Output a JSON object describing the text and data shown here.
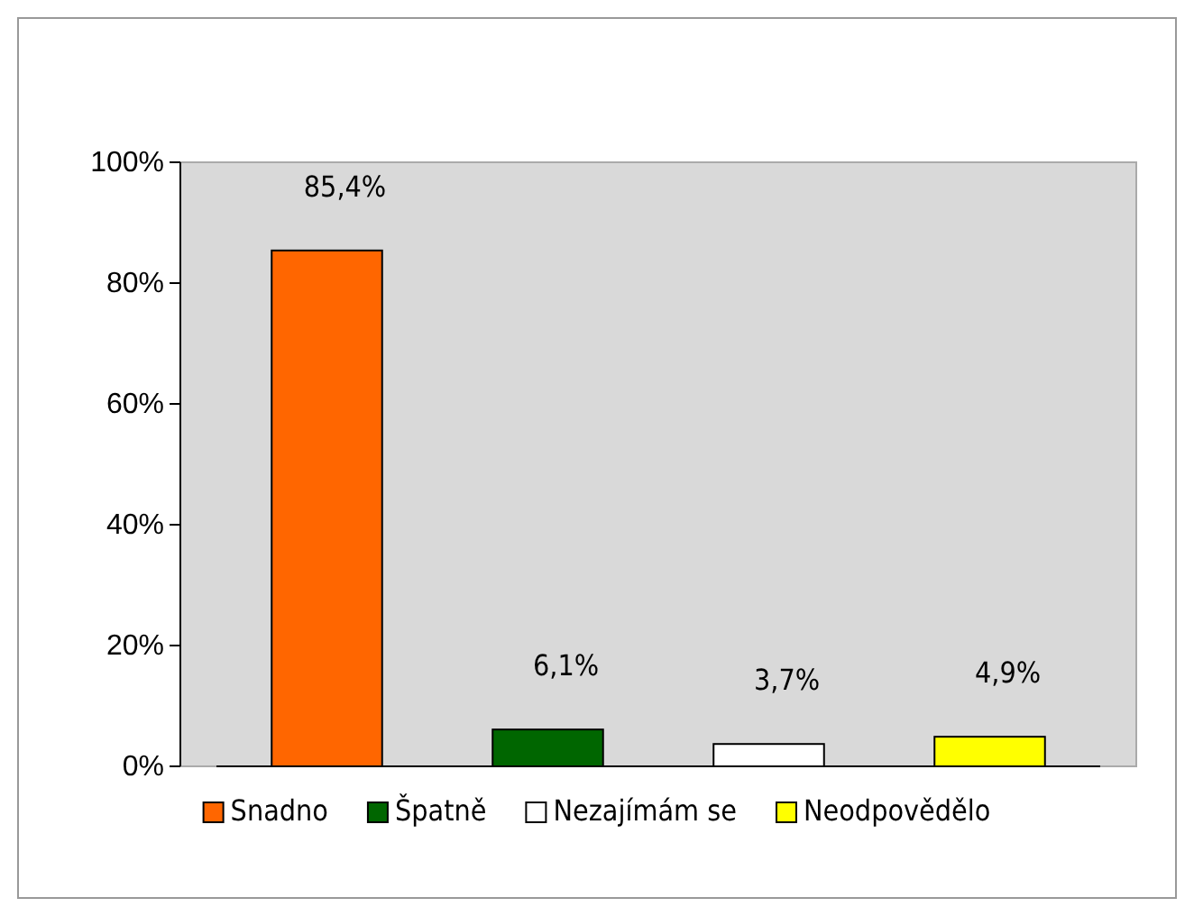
{
  "chart_data": {
    "type": "bar",
    "categories": [
      null,
      null,
      null,
      null
    ],
    "series": [
      {
        "name": "Snadno",
        "color": "#ff6600",
        "values": [
          85.4,
          null,
          null,
          null
        ],
        "value_labels": [
          "85,4%",
          null,
          null,
          null
        ]
      },
      {
        "name": "Špatně",
        "color": "#006600",
        "values": [
          null,
          6.1,
          null,
          null
        ],
        "value_labels": [
          null,
          "6,1%",
          null,
          null
        ]
      },
      {
        "name": "Nezajímám se",
        "color": "#ffffff",
        "values": [
          null,
          null,
          3.7,
          null
        ],
        "value_labels": [
          null,
          null,
          "3,7%",
          null
        ]
      },
      {
        "name": "Neodpovědělo",
        "color": "#ffff00",
        "values": [
          null,
          null,
          null,
          4.9
        ],
        "value_labels": [
          null,
          null,
          null,
          "4,9%"
        ]
      }
    ],
    "ylim": [
      0,
      100
    ],
    "yticks": [
      {
        "value": 0,
        "label": "0%"
      },
      {
        "value": 20,
        "label": "20%"
      },
      {
        "value": 40,
        "label": "40%"
      },
      {
        "value": 60,
        "label": "60%"
      },
      {
        "value": 80,
        "label": "80%"
      },
      {
        "value": 100,
        "label": "100%"
      }
    ],
    "grid": false,
    "legend": "bottom"
  }
}
